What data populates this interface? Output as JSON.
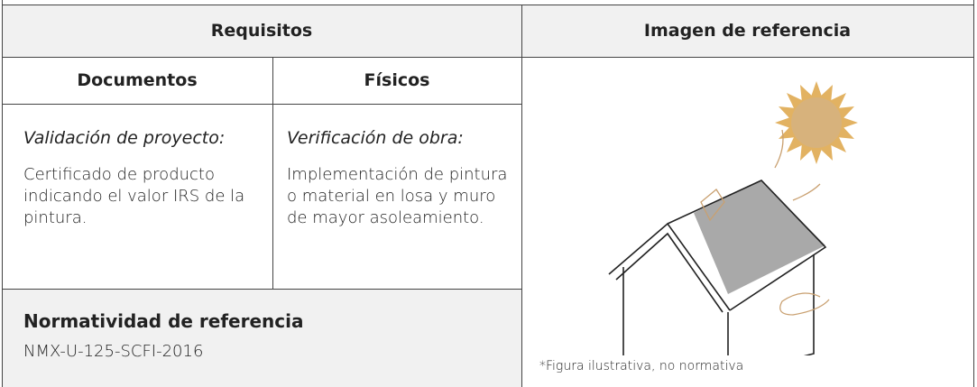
{
  "header": {
    "requirements": "Requisitos",
    "reference_image": "Imagen de referencia"
  },
  "subheaders": [
    "Documentos",
    "Físicos"
  ],
  "columns": [
    {
      "subtitle": "Validación de proyecto:",
      "text": "Certificado de producto indicando el valor IRS de la pintura."
    },
    {
      "subtitle": "Verificación de obra:",
      "text": "Implementación de pintura o material en losa y muro de mayor asoleamiento."
    }
  ],
  "normative": {
    "title": "Normatividad de referencia",
    "code": "NMX-U-125-SCFI-2016"
  },
  "caption": "*Figura ilustrativa, no normativa"
}
